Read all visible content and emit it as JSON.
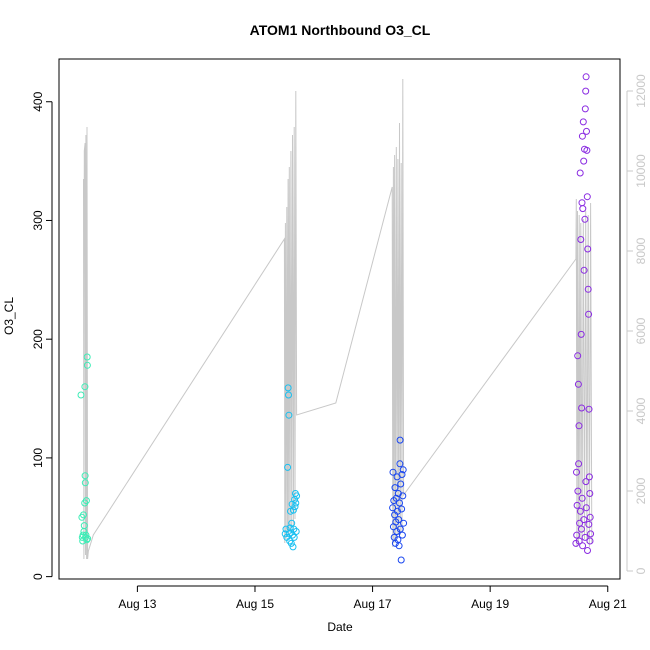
{
  "chart_data": {
    "type": "scatter",
    "title": "ATOM1 Northbound O3_CL",
    "xlabel": "Date",
    "ylabel": "O3_CL",
    "x_unit": "date",
    "xlim": [
      "2024-08-11T16:00",
      "2024-08-21T05:00"
    ],
    "ylim": [
      -2,
      436
    ],
    "y_right_lim": [
      -200,
      12800
    ],
    "x_ticks": [
      "Aug 13",
      "Aug 15",
      "Aug 17",
      "Aug 19",
      "Aug 21"
    ],
    "x_tick_values": [
      "2024-08-13T00:00",
      "2024-08-15T00:00",
      "2024-08-17T00:00",
      "2024-08-19T00:00",
      "2024-08-21T00:00"
    ],
    "y_ticks": [
      "0",
      "100",
      "200",
      "300",
      "400"
    ],
    "y_tick_values": [
      0,
      100,
      200,
      300,
      400
    ],
    "y_right_ticks": [
      "0",
      "2000",
      "4000",
      "6000",
      "8000",
      "10000",
      "12000"
    ],
    "y_right_tick_values": [
      0,
      2000,
      4000,
      6000,
      8000,
      10000,
      12000
    ],
    "grid": false,
    "legend": "none",
    "right_axis_color": "#c8c8c8",
    "line_color": "#c8c8c8",
    "point_style": "open-circle",
    "secondary_line": [
      {
        "x": "2024-08-12T02:00",
        "y": 9800
      },
      {
        "x": "2024-08-12T02:10",
        "y": 300
      },
      {
        "x": "2024-08-12T02:20",
        "y": 10500
      },
      {
        "x": "2024-08-12T02:30",
        "y": 10600
      },
      {
        "x": "2024-08-12T02:40",
        "y": 10700
      },
      {
        "x": "2024-08-12T02:50",
        "y": 400
      },
      {
        "x": "2024-08-12T03:00",
        "y": 10900
      },
      {
        "x": "2024-08-12T03:15",
        "y": 300
      },
      {
        "x": "2024-08-12T03:25",
        "y": 11100
      },
      {
        "x": "2024-08-12T03:40",
        "y": 300
      },
      {
        "x": "2024-08-12T04:00",
        "y": 500
      },
      {
        "x": "2024-08-12T06:00",
        "y": 900
      },
      {
        "x": "2024-08-15T12:00",
        "y": 8300
      },
      {
        "x": "2024-08-15T12:10",
        "y": 700
      },
      {
        "x": "2024-08-15T12:25",
        "y": 8700
      },
      {
        "x": "2024-08-15T12:40",
        "y": 800
      },
      {
        "x": "2024-08-15T13:00",
        "y": 9100
      },
      {
        "x": "2024-08-15T13:15",
        "y": 1000
      },
      {
        "x": "2024-08-15T13:30",
        "y": 9800
      },
      {
        "x": "2024-08-15T13:45",
        "y": 900
      },
      {
        "x": "2024-08-15T14:00",
        "y": 10100
      },
      {
        "x": "2024-08-15T14:20",
        "y": 1000
      },
      {
        "x": "2024-08-15T14:40",
        "y": 10500
      },
      {
        "x": "2024-08-15T15:00",
        "y": 1100
      },
      {
        "x": "2024-08-15T15:20",
        "y": 10900
      },
      {
        "x": "2024-08-15T15:40",
        "y": 1000
      },
      {
        "x": "2024-08-15T16:00",
        "y": 11100
      },
      {
        "x": "2024-08-15T16:20",
        "y": 1300
      },
      {
        "x": "2024-08-15T16:40",
        "y": 12000
      },
      {
        "x": "2024-08-15T17:00",
        "y": 3900
      },
      {
        "x": "2024-08-16T09:00",
        "y": 4200
      },
      {
        "x": "2024-08-17T08:00",
        "y": 9600
      },
      {
        "x": "2024-08-17T08:15",
        "y": 600
      },
      {
        "x": "2024-08-17T08:30",
        "y": 10100
      },
      {
        "x": "2024-08-17T08:45",
        "y": 700
      },
      {
        "x": "2024-08-17T09:00",
        "y": 10400
      },
      {
        "x": "2024-08-17T09:20",
        "y": 800
      },
      {
        "x": "2024-08-17T09:40",
        "y": 10600
      },
      {
        "x": "2024-08-17T10:00",
        "y": 800
      },
      {
        "x": "2024-08-17T10:20",
        "y": 10300
      },
      {
        "x": "2024-08-17T10:40",
        "y": 900
      },
      {
        "x": "2024-08-17T11:00",
        "y": 11200
      },
      {
        "x": "2024-08-17T11:20",
        "y": 900
      },
      {
        "x": "2024-08-17T11:40",
        "y": 10200
      },
      {
        "x": "2024-08-17T12:00",
        "y": 1000
      },
      {
        "x": "2024-08-17T12:20",
        "y": 12300
      },
      {
        "x": "2024-08-17T12:40",
        "y": 1900
      },
      {
        "x": "2024-08-20T11:00",
        "y": 7800
      },
      {
        "x": "2024-08-20T11:10",
        "y": 9300
      },
      {
        "x": "2024-08-20T11:25",
        "y": 600
      },
      {
        "x": "2024-08-20T11:40",
        "y": 9000
      },
      {
        "x": "2024-08-20T12:00",
        "y": 700
      },
      {
        "x": "2024-08-20T12:20",
        "y": 8900
      },
      {
        "x": "2024-08-20T12:40",
        "y": 800
      },
      {
        "x": "2024-08-20T13:00",
        "y": 8700
      },
      {
        "x": "2024-08-20T13:30",
        "y": 700
      },
      {
        "x": "2024-08-20T14:00",
        "y": 8800
      },
      {
        "x": "2024-08-20T14:30",
        "y": 800
      },
      {
        "x": "2024-08-20T15:00",
        "y": 9000
      },
      {
        "x": "2024-08-20T15:30",
        "y": 700
      },
      {
        "x": "2024-08-20T16:00",
        "y": 8900
      },
      {
        "x": "2024-08-20T16:30",
        "y": 600
      },
      {
        "x": "2024-08-20T17:00",
        "y": 9200
      },
      {
        "x": "2024-08-20T17:30",
        "y": 700
      }
    ],
    "series": [
      {
        "color": "#3dedb6",
        "points": [
          {
            "x": "2024-08-12T01:00",
            "y": 153
          },
          {
            "x": "2024-08-12T01:20",
            "y": 50
          },
          {
            "x": "2024-08-12T01:30",
            "y": 33
          },
          {
            "x": "2024-08-12T01:40",
            "y": 30
          },
          {
            "x": "2024-08-12T01:50",
            "y": 35
          },
          {
            "x": "2024-08-12T02:00",
            "y": 52
          },
          {
            "x": "2024-08-12T02:10",
            "y": 38
          },
          {
            "x": "2024-08-12T02:20",
            "y": 43
          },
          {
            "x": "2024-08-12T02:30",
            "y": 62
          },
          {
            "x": "2024-08-12T02:35",
            "y": 160
          },
          {
            "x": "2024-08-12T02:40",
            "y": 85
          },
          {
            "x": "2024-08-12T02:45",
            "y": 79
          },
          {
            "x": "2024-08-12T02:50",
            "y": 33
          },
          {
            "x": "2024-08-12T03:00",
            "y": 35
          },
          {
            "x": "2024-08-12T03:10",
            "y": 64
          },
          {
            "x": "2024-08-12T03:20",
            "y": 31
          },
          {
            "x": "2024-08-12T03:30",
            "y": 185
          },
          {
            "x": "2024-08-12T03:35",
            "y": 178
          },
          {
            "x": "2024-08-12T03:40",
            "y": 32
          }
        ]
      },
      {
        "color": "#19c0f1",
        "points": [
          {
            "x": "2024-08-15T12:20",
            "y": 36
          },
          {
            "x": "2024-08-15T12:40",
            "y": 40
          },
          {
            "x": "2024-08-15T13:00",
            "y": 33
          },
          {
            "x": "2024-08-15T13:20",
            "y": 92
          },
          {
            "x": "2024-08-15T13:30",
            "y": 159
          },
          {
            "x": "2024-08-15T13:40",
            "y": 153
          },
          {
            "x": "2024-08-15T13:50",
            "y": 136
          },
          {
            "x": "2024-08-15T14:00",
            "y": 36
          },
          {
            "x": "2024-08-15T14:10",
            "y": 30
          },
          {
            "x": "2024-08-15T14:20",
            "y": 41
          },
          {
            "x": "2024-08-15T14:30",
            "y": 55
          },
          {
            "x": "2024-08-15T14:40",
            "y": 37
          },
          {
            "x": "2024-08-15T14:50",
            "y": 28
          },
          {
            "x": "2024-08-15T15:00",
            "y": 45
          },
          {
            "x": "2024-08-15T15:10",
            "y": 61
          },
          {
            "x": "2024-08-15T15:20",
            "y": 35
          },
          {
            "x": "2024-08-15T15:30",
            "y": 25
          },
          {
            "x": "2024-08-15T15:40",
            "y": 56
          },
          {
            "x": "2024-08-15T15:50",
            "y": 40
          },
          {
            "x": "2024-08-15T16:00",
            "y": 33
          },
          {
            "x": "2024-08-15T16:10",
            "y": 65
          },
          {
            "x": "2024-08-15T16:20",
            "y": 59
          },
          {
            "x": "2024-08-15T16:30",
            "y": 70
          },
          {
            "x": "2024-08-15T16:40",
            "y": 62
          },
          {
            "x": "2024-08-15T16:50",
            "y": 38
          },
          {
            "x": "2024-08-15T17:00",
            "y": 68
          }
        ]
      },
      {
        "color": "#1946f0",
        "points": [
          {
            "x": "2024-08-17T08:10",
            "y": 58
          },
          {
            "x": "2024-08-17T08:20",
            "y": 88
          },
          {
            "x": "2024-08-17T08:30",
            "y": 42
          },
          {
            "x": "2024-08-17T08:40",
            "y": 64
          },
          {
            "x": "2024-08-17T08:50",
            "y": 33
          },
          {
            "x": "2024-08-17T09:00",
            "y": 52
          },
          {
            "x": "2024-08-17T09:10",
            "y": 75
          },
          {
            "x": "2024-08-17T09:20",
            "y": 28
          },
          {
            "x": "2024-08-17T09:30",
            "y": 46
          },
          {
            "x": "2024-08-17T09:40",
            "y": 66
          },
          {
            "x": "2024-08-17T09:50",
            "y": 38
          },
          {
            "x": "2024-08-17T10:00",
            "y": 84
          },
          {
            "x": "2024-08-17T10:10",
            "y": 55
          },
          {
            "x": "2024-08-17T10:20",
            "y": 31
          },
          {
            "x": "2024-08-17T10:30",
            "y": 70
          },
          {
            "x": "2024-08-17T10:40",
            "y": 48
          },
          {
            "x": "2024-08-17T10:50",
            "y": 26
          },
          {
            "x": "2024-08-17T11:00",
            "y": 62
          },
          {
            "x": "2024-08-17T11:10",
            "y": 95
          },
          {
            "x": "2024-08-17T11:15",
            "y": 115
          },
          {
            "x": "2024-08-17T11:20",
            "y": 40
          },
          {
            "x": "2024-08-17T11:30",
            "y": 78
          },
          {
            "x": "2024-08-17T11:40",
            "y": 14
          },
          {
            "x": "2024-08-17T11:50",
            "y": 57
          },
          {
            "x": "2024-08-17T12:00",
            "y": 86
          },
          {
            "x": "2024-08-17T12:10",
            "y": 35
          },
          {
            "x": "2024-08-17T12:20",
            "y": 68
          },
          {
            "x": "2024-08-17T12:30",
            "y": 90
          },
          {
            "x": "2024-08-17T12:40",
            "y": 45
          }
        ]
      },
      {
        "color": "#8a2be2",
        "points": [
          {
            "x": "2024-08-20T11:00",
            "y": 28
          },
          {
            "x": "2024-08-20T11:15",
            "y": 88
          },
          {
            "x": "2024-08-20T11:30",
            "y": 60
          },
          {
            "x": "2024-08-20T11:45",
            "y": 186
          },
          {
            "x": "2024-08-20T12:00",
            "y": 162
          },
          {
            "x": "2024-08-20T12:15",
            "y": 127
          },
          {
            "x": "2024-08-20T12:30",
            "y": 45
          },
          {
            "x": "2024-08-20T12:45",
            "y": 340
          },
          {
            "x": "2024-08-20T13:00",
            "y": 284
          },
          {
            "x": "2024-08-20T13:10",
            "y": 204
          },
          {
            "x": "2024-08-20T13:20",
            "y": 142
          },
          {
            "x": "2024-08-20T13:30",
            "y": 315
          },
          {
            "x": "2024-08-20T13:40",
            "y": 371
          },
          {
            "x": "2024-08-20T13:50",
            "y": 310
          },
          {
            "x": "2024-08-20T14:00",
            "y": 383
          },
          {
            "x": "2024-08-20T14:10",
            "y": 350
          },
          {
            "x": "2024-08-20T14:20",
            "y": 258
          },
          {
            "x": "2024-08-20T14:30",
            "y": 360
          },
          {
            "x": "2024-08-20T14:40",
            "y": 301
          },
          {
            "x": "2024-08-20T14:50",
            "y": 394
          },
          {
            "x": "2024-08-20T15:00",
            "y": 409
          },
          {
            "x": "2024-08-20T15:10",
            "y": 421
          },
          {
            "x": "2024-08-20T15:20",
            "y": 375
          },
          {
            "x": "2024-08-20T15:30",
            "y": 359
          },
          {
            "x": "2024-08-20T15:40",
            "y": 320
          },
          {
            "x": "2024-08-20T15:50",
            "y": 276
          },
          {
            "x": "2024-08-20T16:00",
            "y": 242
          },
          {
            "x": "2024-08-20T16:10",
            "y": 221
          },
          {
            "x": "2024-08-20T16:20",
            "y": 141
          },
          {
            "x": "2024-08-20T16:30",
            "y": 84
          },
          {
            "x": "2024-08-20T16:40",
            "y": 70
          },
          {
            "x": "2024-08-20T16:50",
            "y": 50
          },
          {
            "x": "2024-08-20T17:00",
            "y": 36
          },
          {
            "x": "2024-08-20T11:20",
            "y": 35
          },
          {
            "x": "2024-08-20T11:50",
            "y": 72
          },
          {
            "x": "2024-08-20T12:20",
            "y": 30
          },
          {
            "x": "2024-08-20T12:50",
            "y": 55
          },
          {
            "x": "2024-08-20T13:15",
            "y": 40
          },
          {
            "x": "2024-08-20T13:45",
            "y": 26
          },
          {
            "x": "2024-08-20T14:15",
            "y": 48
          },
          {
            "x": "2024-08-20T14:45",
            "y": 33
          },
          {
            "x": "2024-08-20T15:15",
            "y": 58
          },
          {
            "x": "2024-08-20T15:45",
            "y": 22
          },
          {
            "x": "2024-08-20T16:15",
            "y": 44
          },
          {
            "x": "2024-08-20T16:45",
            "y": 30
          },
          {
            "x": "2024-08-20T12:05",
            "y": 95
          },
          {
            "x": "2024-08-20T13:35",
            "y": 66
          },
          {
            "x": "2024-08-20T15:05",
            "y": 80
          }
        ]
      }
    ]
  }
}
